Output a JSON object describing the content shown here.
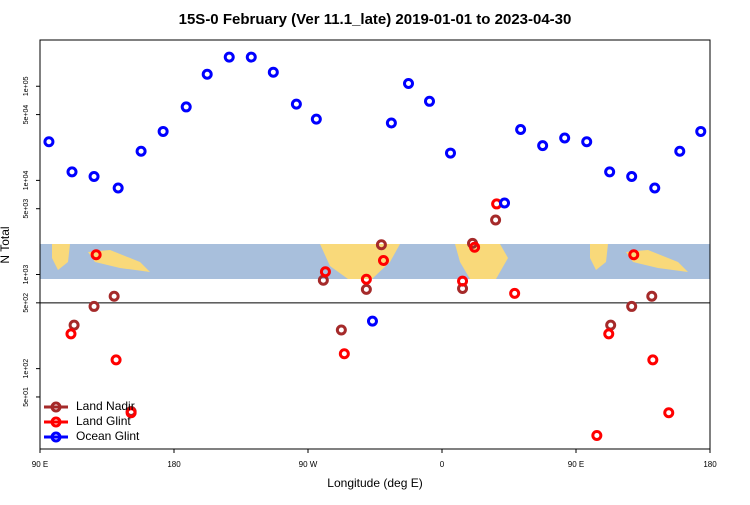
{
  "chart_data": {
    "type": "scatter",
    "title": "15S-0 February (Ver 11.1_late)   2019-01-01 to 2023-04-30",
    "x_label": "Longitude (deg E)",
    "y_label": "N Total",
    "xlim": [
      90,
      540
    ],
    "xticks": [
      {
        "value": 90,
        "label": "90 E"
      },
      {
        "value": 180,
        "label": "180"
      },
      {
        "value": 270,
        "label": "90 W"
      },
      {
        "value": 360,
        "label": "0"
      },
      {
        "value": 450,
        "label": "90 E"
      },
      {
        "value": 540,
        "label": "180"
      }
    ],
    "ylim": [
      14,
      310000
    ],
    "log_y": true,
    "yticks": [
      {
        "value": 50,
        "label": "5e+01"
      },
      {
        "value": 100,
        "label": "1e+02"
      },
      {
        "value": 500,
        "label": "5e+02"
      },
      {
        "value": 1000,
        "label": "1e+03"
      },
      {
        "value": 5000,
        "label": "5e+03"
      },
      {
        "value": 10000,
        "label": "1e+04"
      },
      {
        "value": 50000,
        "label": "5e+04"
      },
      {
        "value": 100000,
        "label": "1e+05"
      }
    ],
    "hline": 500,
    "legend": "bottom-left",
    "series": [
      {
        "name": "Land Nadir",
        "color": "#a52a2a",
        "x": [
          112.9,
          126.3,
          139.8,
          151.2,
          280.3,
          292.4,
          309.2,
          319.3,
          373.8,
          380.5,
          396,
          473.3,
          487.4,
          500.9
        ],
        "values": [
          290,
          458,
          587,
          35,
          868,
          257,
          695,
          2070,
          710,
          2140,
          3790,
          290,
          458,
          587
        ]
      },
      {
        "name": "Land Glint",
        "color": "#ff0000",
        "x": [
          110.8,
          127.7,
          141.1,
          151.2,
          281.7,
          294.4,
          309.2,
          320.7,
          373.8,
          381.9,
          396.7,
          408.8,
          464,
          472,
          488.8,
          501.6,
          512.3
        ],
        "values": [
          234,
          1620,
          124,
          34,
          1070,
          144,
          890,
          1410,
          850,
          1950,
          5620,
          630,
          19.5,
          234,
          1620,
          124,
          34
        ]
      },
      {
        "name": "Ocean Glint",
        "color": "#0000ff",
        "x": [
          96,
          111.5,
          126.3,
          142.5,
          157.9,
          172.7,
          188.2,
          202.3,
          217.1,
          231.9,
          246.7,
          262.2,
          275.6,
          313.3,
          326,
          337.5,
          351.6,
          365.7,
          402,
          412.8,
          427.6,
          442.4,
          457.2,
          472.6,
          487.4,
          502.9,
          519.7,
          533.8
        ],
        "values": [
          25700,
          12300,
          11000,
          8300,
          20400,
          33100,
          60300,
          134000,
          204000,
          204000,
          141000,
          64600,
          44700,
          320,
          40700,
          107000,
          69200,
          19500,
          5750,
          34700,
          23400,
          28200,
          25700,
          12300,
          11000,
          8300,
          20400,
          33100
        ]
      }
    ]
  }
}
